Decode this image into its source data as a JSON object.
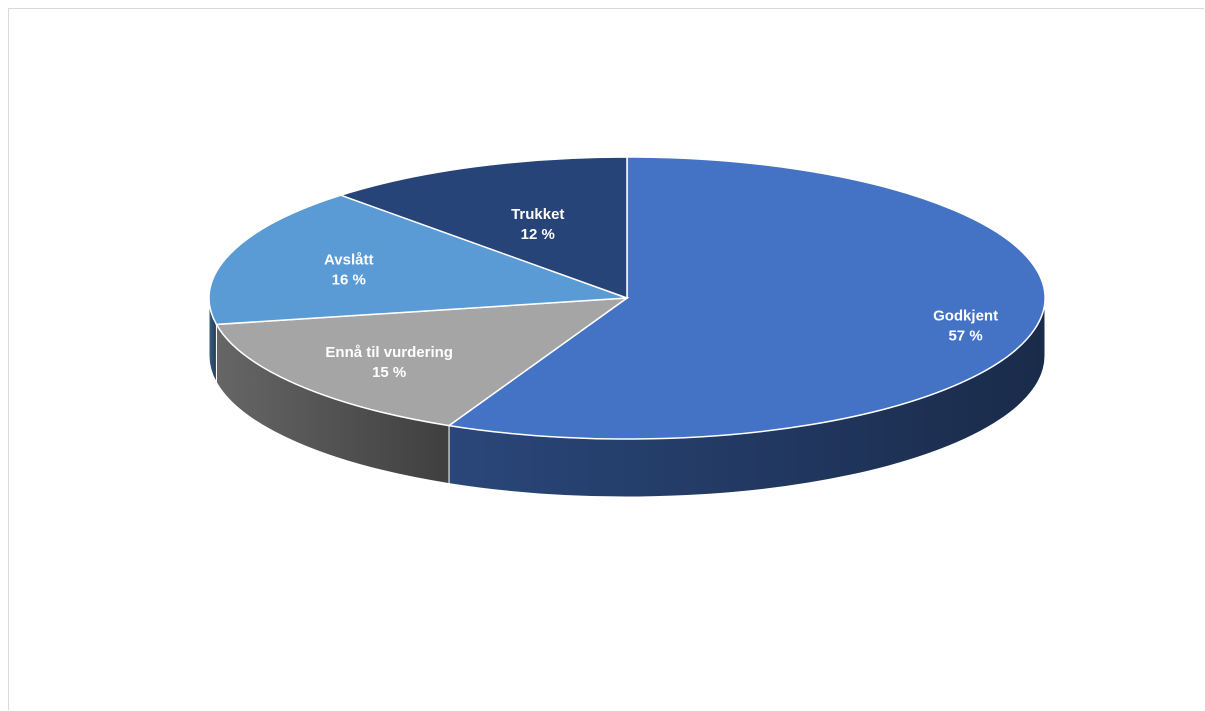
{
  "chart_data": {
    "type": "pie",
    "style": "3d-tilted",
    "title": "",
    "slices": [
      {
        "label": "Godkjent",
        "value": 57,
        "value_label": "57 %",
        "color": "#4472c4"
      },
      {
        "label": "Ennå til vurdering",
        "value": 15,
        "value_label": "15 %",
        "color": "#a5a5a5"
      },
      {
        "label": "Avslått",
        "value": 16,
        "value_label": "16 %",
        "color": "#5b9bd5"
      },
      {
        "label": "Trukket",
        "value": 12,
        "value_label": "12 %",
        "color": "#264478"
      }
    ],
    "legend": "none"
  }
}
